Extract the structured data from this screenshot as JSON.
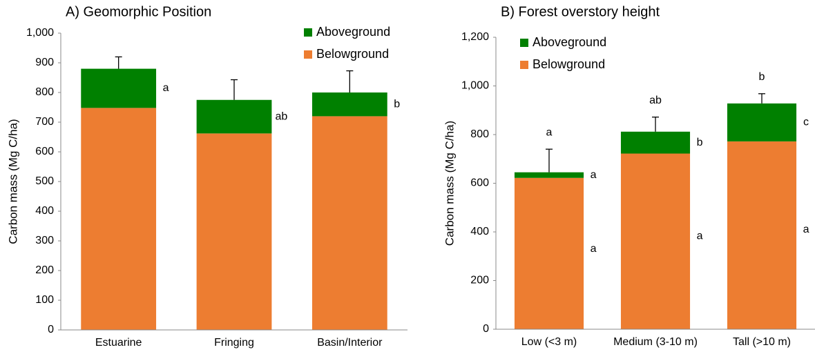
{
  "chart_data": [
    {
      "type": "stacked-bar",
      "title": "A) Geomorphic Position",
      "y_label": "Carbon mass (Mg C/ha)",
      "categories": [
        "Estuarine",
        "Fringing",
        "Basin/Interior"
      ],
      "series": [
        {
          "name": "Belowground",
          "color": "#ed7d31",
          "values": [
            748,
            662,
            720
          ]
        },
        {
          "name": "Aboveground",
          "color": "#008000",
          "values": [
            132,
            113,
            80
          ],
          "errors": [
            40,
            68,
            73
          ],
          "letters": [
            "a",
            "ab",
            "b"
          ]
        }
      ],
      "ylim": [
        0,
        1000
      ],
      "yticks": [
        0,
        100,
        200,
        300,
        400,
        500,
        600,
        700,
        800,
        900,
        {
          "value": 1000,
          "label": "1,000"
        }
      ],
      "legend": "upper right",
      "grid": false
    },
    {
      "type": "stacked-bar",
      "title": "B) Forest overstory height",
      "y_label": "Carbon mass (Mg C/ha)",
      "categories": [
        "Low (<3 m)",
        "Medium (3-10 m)",
        "Tall  (>10 m)"
      ],
      "series": [
        {
          "name": "Belowground",
          "color": "#ed7d31",
          "values": [
            622,
            722,
            772
          ],
          "letters": [
            "a",
            "a",
            "a"
          ]
        },
        {
          "name": "Aboveground",
          "color": "#008000",
          "values": [
            23,
            90,
            156
          ],
          "errors": [
            95,
            60,
            40
          ],
          "letters": [
            "a",
            "b",
            "c"
          ],
          "error_letters": [
            "a",
            "ab",
            "b"
          ]
        }
      ],
      "ylim": [
        0,
        1200
      ],
      "yticks": [
        0,
        200,
        400,
        600,
        800,
        {
          "value": 1000,
          "label": "1,000"
        },
        {
          "value": 1200,
          "label": "1,200"
        }
      ],
      "legend": "upper left",
      "grid": false
    }
  ]
}
